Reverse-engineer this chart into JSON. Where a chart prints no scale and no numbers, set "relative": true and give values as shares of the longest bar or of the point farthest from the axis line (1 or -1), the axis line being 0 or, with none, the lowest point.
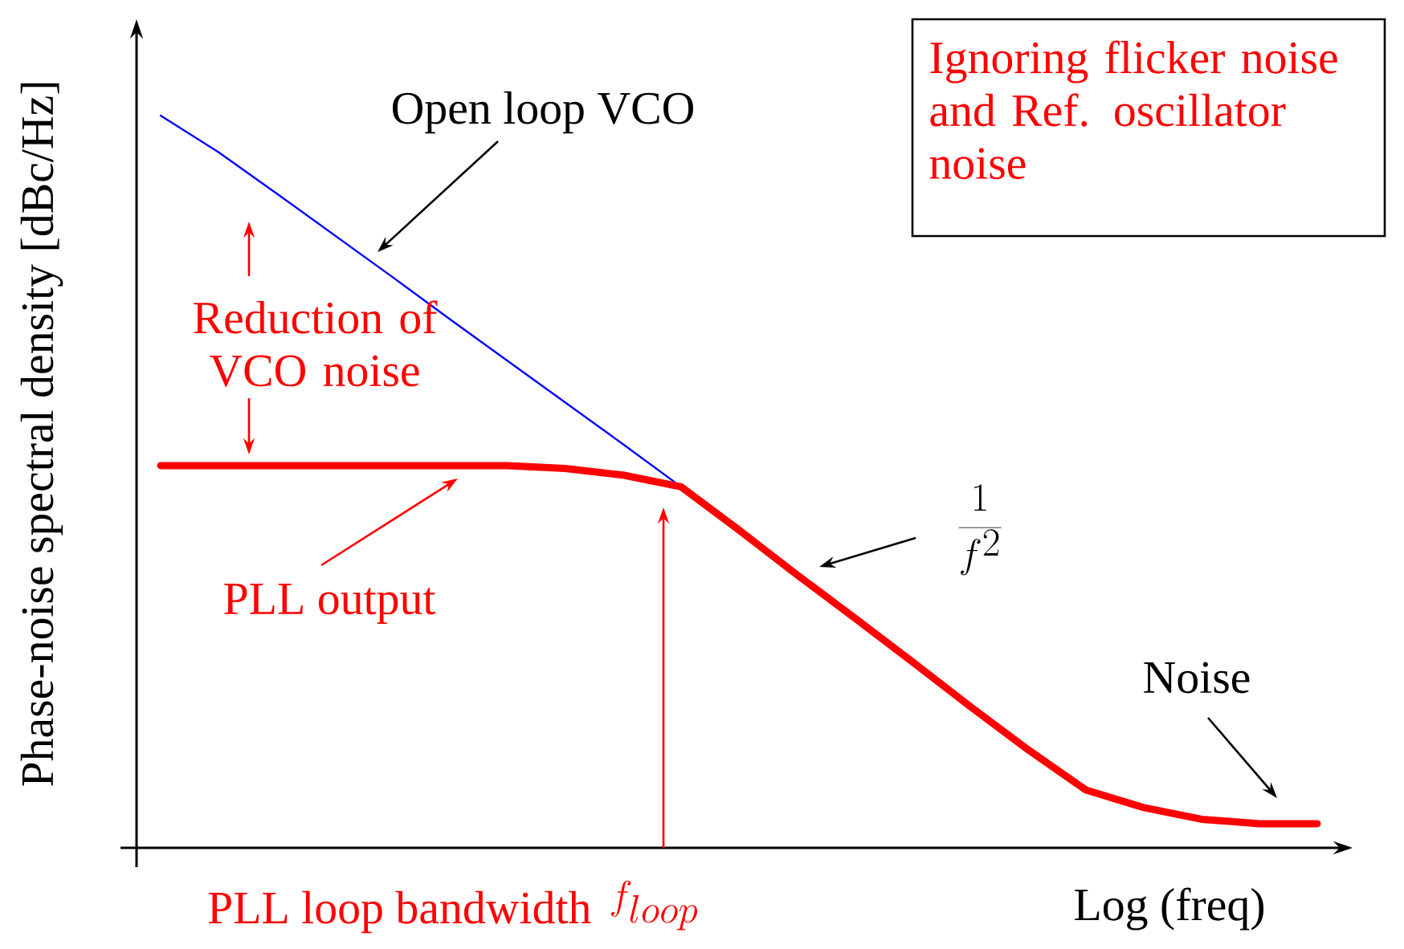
{
  "chart_data": {
    "type": "line",
    "relative": true,
    "xlabel": "Log (freq)",
    "ylabel": "Phase-noise spectral density [dBc/Hz]",
    "categories": [
      null,
      null,
      null,
      null,
      null,
      null,
      null,
      null,
      null,
      null,
      null,
      null,
      null,
      null,
      null,
      null,
      null,
      null,
      null,
      null,
      null
    ],
    "series": [
      {
        "color": "#0000ff",
        "values": [
          1.0,
          0.95,
          0.894,
          0.837,
          0.78,
          0.722,
          0.665,
          0.608,
          0.551,
          0.493,
          null,
          null,
          null,
          null,
          null,
          null,
          null,
          null,
          null,
          null,
          null
        ]
      },
      {
        "color": "#ff0000",
        "values": [
          0.522,
          0.522,
          0.522,
          0.522,
          0.522,
          0.522,
          0.522,
          0.518,
          0.509,
          0.493,
          0.434,
          0.373,
          0.314,
          0.254,
          0.193,
          0.134,
          0.079,
          0.055,
          0.039,
          0.033,
          0.033
        ]
      }
    ],
    "annotations": [
      "Open loop VCO",
      "Reduction of VCO noise",
      "PLL output",
      "\\frac{1}{f^{2}}",
      "Noise",
      "Ignoring flicker noise and Ref. oscillator noise",
      "PLL loop bandwidth",
      "f_{loop}"
    ],
    "marker": "none",
    "line_style": "solid"
  }
}
